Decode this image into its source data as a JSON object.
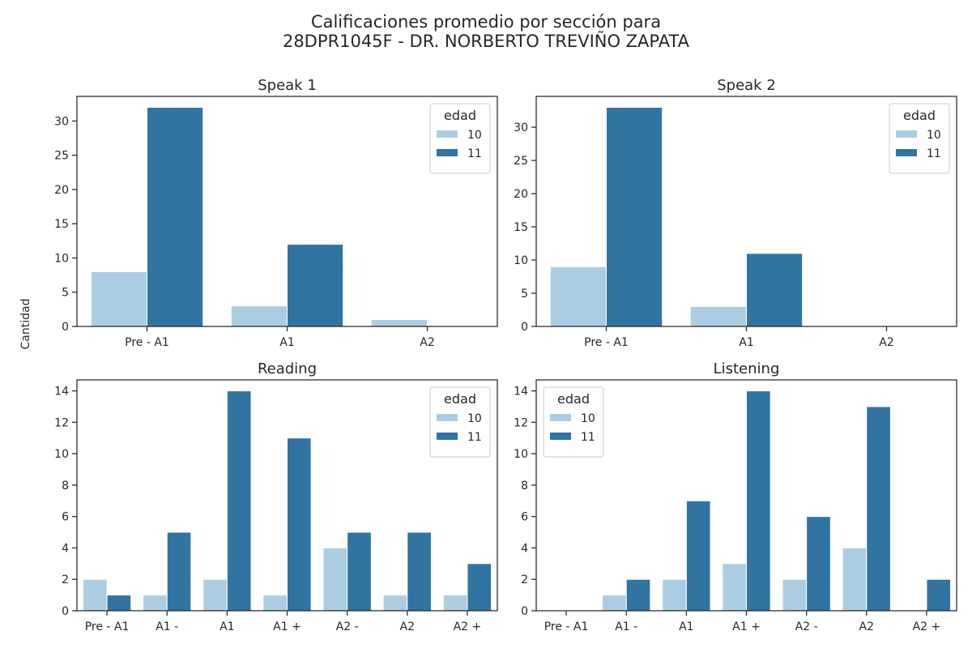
{
  "figure": {
    "title_line1": "Calificaciones promedio por sección para",
    "title_line2": "28DPR1045F - DR. NORBERTO TREVIÑO ZAPATA",
    "common_ylabel": "Cantidad"
  },
  "colors": {
    "10": "#abcde1",
    "11": "#3174a2",
    "axis": "#262626"
  },
  "chart_data": [
    {
      "type": "bar",
      "title": "Speak 1",
      "categories": [
        "Pre - A1",
        "A1",
        "A2"
      ],
      "series": [
        {
          "name": "10",
          "values": [
            8,
            3,
            1
          ]
        },
        {
          "name": "11",
          "values": [
            32,
            12,
            0
          ]
        }
      ],
      "ylim": [
        0,
        33.6
      ],
      "yticks": [
        0,
        5,
        10,
        15,
        20,
        25,
        30
      ],
      "legend": {
        "title": "edad",
        "placement": "upper right"
      }
    },
    {
      "type": "bar",
      "title": "Speak 2",
      "categories": [
        "Pre - A1",
        "A1",
        "A2"
      ],
      "series": [
        {
          "name": "10",
          "values": [
            9,
            3,
            0
          ]
        },
        {
          "name": "11",
          "values": [
            33,
            11,
            0
          ]
        }
      ],
      "ylim": [
        0,
        34.65
      ],
      "yticks": [
        0,
        5,
        10,
        15,
        20,
        25,
        30
      ],
      "legend": {
        "title": "edad",
        "placement": "upper right"
      }
    },
    {
      "type": "bar",
      "title": "Reading",
      "categories": [
        "Pre - A1",
        "A1 -",
        "A1",
        "A1 +",
        "A2 -",
        "A2",
        "A2 +"
      ],
      "series": [
        {
          "name": "10",
          "values": [
            2,
            1,
            2,
            1,
            4,
            1,
            1
          ]
        },
        {
          "name": "11",
          "values": [
            1,
            5,
            14,
            11,
            5,
            5,
            3
          ]
        }
      ],
      "ylim": [
        0,
        14.7
      ],
      "yticks": [
        0,
        2,
        4,
        6,
        8,
        10,
        12,
        14
      ],
      "legend": {
        "title": "edad",
        "placement": "upper right"
      }
    },
    {
      "type": "bar",
      "title": "Listening",
      "categories": [
        "Pre - A1",
        "A1 -",
        "A1",
        "A1 +",
        "A2 -",
        "A2",
        "A2 +"
      ],
      "series": [
        {
          "name": "10",
          "values": [
            0,
            1,
            2,
            3,
            2,
            4,
            0
          ]
        },
        {
          "name": "11",
          "values": [
            0,
            2,
            7,
            14,
            6,
            13,
            2
          ]
        }
      ],
      "ylim": [
        0,
        14.7
      ],
      "yticks": [
        0,
        2,
        4,
        6,
        8,
        10,
        12,
        14
      ],
      "legend": {
        "title": "edad",
        "placement": "upper left"
      }
    }
  ]
}
